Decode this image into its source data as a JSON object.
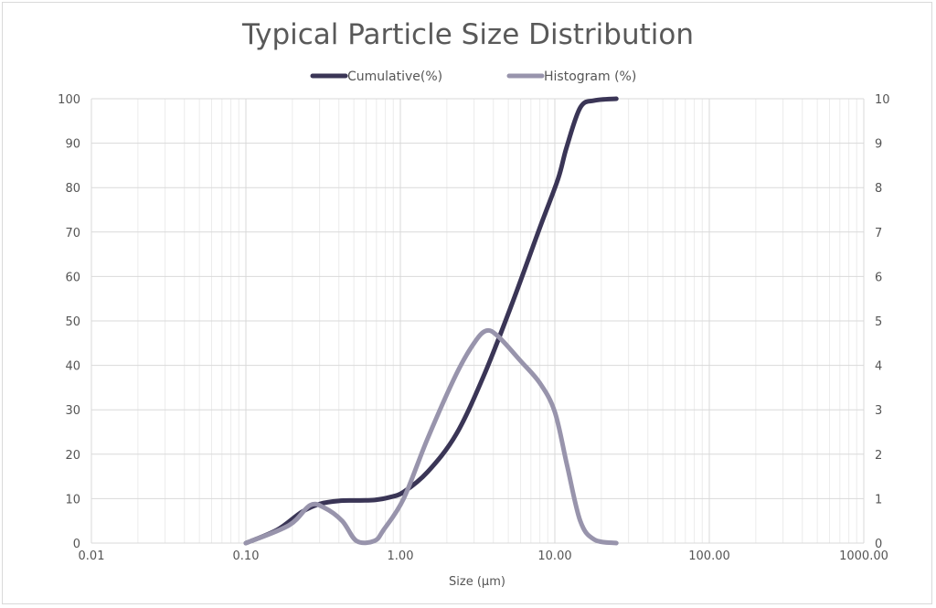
{
  "chart_data": {
    "type": "line",
    "title": "Typical Particle Size Distribution",
    "xlabel": "Size (µm)",
    "ylabel": "",
    "y2label": "",
    "xscale": "log",
    "xlim": [
      0.01,
      1000
    ],
    "ylim": [
      0,
      100
    ],
    "y2lim": [
      0,
      10
    ],
    "grid": true,
    "legend_position": "top",
    "x_tick_labels": [
      "0.01",
      "0.10",
      "1.00",
      "10.00",
      "100.00",
      "1000.00"
    ],
    "y_tick_labels": [
      "0",
      "10",
      "20",
      "30",
      "40",
      "50",
      "60",
      "70",
      "80",
      "90",
      "100"
    ],
    "y2_tick_labels": [
      "0",
      "1",
      "2",
      "3",
      "4",
      "5",
      "6",
      "7",
      "8",
      "9",
      "10"
    ],
    "series": [
      {
        "name": "Cumulative(%)",
        "axis": "left",
        "color": "#3a3556",
        "x": [
          0.1,
          0.16,
          0.23,
          0.3,
          0.4,
          0.55,
          0.68,
          0.85,
          1.05,
          1.5,
          2.3,
          3.5,
          5.3,
          8.0,
          10.5,
          11.9,
          14.6,
          18,
          25
        ],
        "y": [
          0,
          3,
          7,
          8.8,
          9.5,
          9.6,
          9.7,
          10.3,
          11.5,
          16,
          24.5,
          38,
          54,
          71,
          82,
          89,
          98,
          99.6,
          100
        ]
      },
      {
        "name": "Histogram (%)",
        "axis": "right",
        "color": "#9894ac",
        "x": [
          0.1,
          0.19,
          0.26,
          0.32,
          0.42,
          0.52,
          0.68,
          0.78,
          1.05,
          1.5,
          2.3,
          3.0,
          3.6,
          4.3,
          6.0,
          8.0,
          10,
          12,
          14.6,
          18,
          25
        ],
        "y": [
          0,
          0.4,
          0.85,
          0.8,
          0.5,
          0.05,
          0.05,
          0.3,
          1.0,
          2.35,
          3.8,
          4.5,
          4.78,
          4.65,
          4.1,
          3.6,
          2.95,
          1.75,
          0.5,
          0.08,
          0
        ]
      }
    ]
  }
}
